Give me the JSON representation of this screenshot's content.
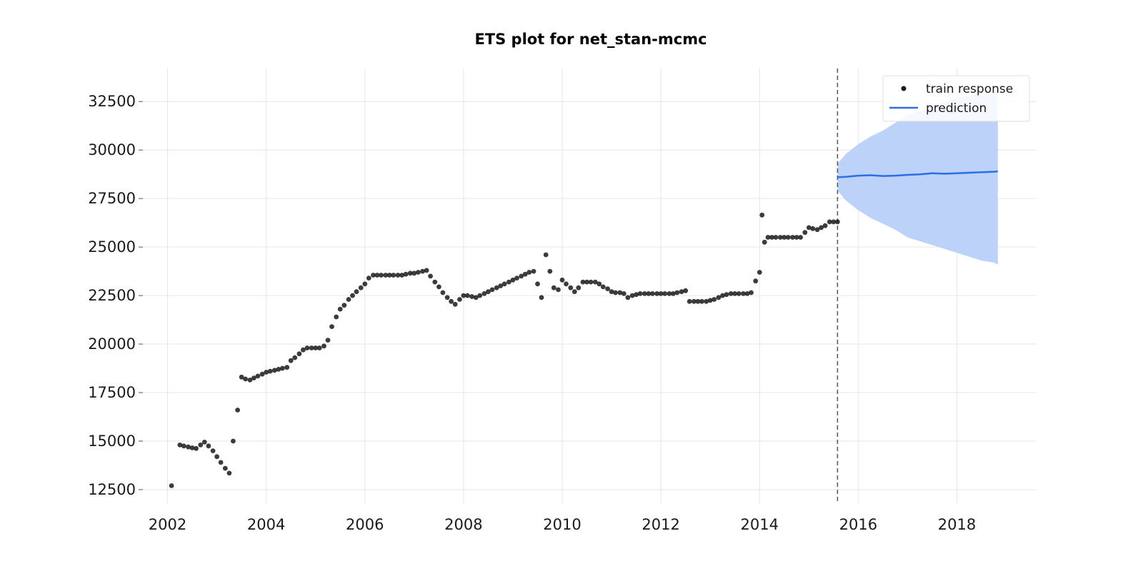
{
  "chart_data": {
    "type": "scatter",
    "title": "ETS plot for net_stan-mcmc",
    "xlabel": "",
    "ylabel": "",
    "xlim": [
      2001.5,
      2019.6
    ],
    "ylim": [
      11800,
      34200
    ],
    "x_ticks": [
      2002,
      2004,
      2006,
      2008,
      2010,
      2012,
      2014,
      2016,
      2018
    ],
    "y_ticks": [
      12500,
      15000,
      17500,
      20000,
      22500,
      25000,
      27500,
      30000,
      32500
    ],
    "grid": true,
    "legend_position": "top-right",
    "train_end_marker": 2015.58,
    "legend": [
      {
        "label": "train response",
        "kind": "marker",
        "color": "#1a1a1a"
      },
      {
        "label": "prediction",
        "kind": "line",
        "color": "#2b6fe6"
      }
    ],
    "colors": {
      "train": "#1a1a1a",
      "prediction": "#2b6fe6",
      "band": "#bcd2f8",
      "marker_line": "#555555"
    },
    "train_response": [
      [
        2002.08,
        12700
      ],
      [
        2002.25,
        14800
      ],
      [
        2002.33,
        14750
      ],
      [
        2002.42,
        14700
      ],
      [
        2002.5,
        14650
      ],
      [
        2002.58,
        14620
      ],
      [
        2002.67,
        14800
      ],
      [
        2002.75,
        14950
      ],
      [
        2002.83,
        14750
      ],
      [
        2002.92,
        14500
      ],
      [
        2003.0,
        14200
      ],
      [
        2003.08,
        13900
      ],
      [
        2003.17,
        13600
      ],
      [
        2003.25,
        13350
      ],
      [
        2003.33,
        15000
      ],
      [
        2003.42,
        16600
      ],
      [
        2003.5,
        18300
      ],
      [
        2003.58,
        18200
      ],
      [
        2003.67,
        18150
      ],
      [
        2003.75,
        18250
      ],
      [
        2003.83,
        18350
      ],
      [
        2003.92,
        18450
      ],
      [
        2004.0,
        18550
      ],
      [
        2004.08,
        18600
      ],
      [
        2004.17,
        18650
      ],
      [
        2004.25,
        18700
      ],
      [
        2004.33,
        18750
      ],
      [
        2004.42,
        18800
      ],
      [
        2004.5,
        19150
      ],
      [
        2004.58,
        19300
      ],
      [
        2004.67,
        19500
      ],
      [
        2004.75,
        19700
      ],
      [
        2004.83,
        19800
      ],
      [
        2004.92,
        19800
      ],
      [
        2005.0,
        19800
      ],
      [
        2005.08,
        19800
      ],
      [
        2005.17,
        19900
      ],
      [
        2005.25,
        20200
      ],
      [
        2005.33,
        20900
      ],
      [
        2005.42,
        21400
      ],
      [
        2005.5,
        21800
      ],
      [
        2005.58,
        22000
      ],
      [
        2005.67,
        22300
      ],
      [
        2005.75,
        22500
      ],
      [
        2005.83,
        22700
      ],
      [
        2005.92,
        22900
      ],
      [
        2006.0,
        23100
      ],
      [
        2006.08,
        23400
      ],
      [
        2006.17,
        23550
      ],
      [
        2006.25,
        23550
      ],
      [
        2006.33,
        23550
      ],
      [
        2006.42,
        23550
      ],
      [
        2006.5,
        23550
      ],
      [
        2006.58,
        23550
      ],
      [
        2006.67,
        23550
      ],
      [
        2006.75,
        23550
      ],
      [
        2006.83,
        23600
      ],
      [
        2006.92,
        23650
      ],
      [
        2007.0,
        23650
      ],
      [
        2007.08,
        23700
      ],
      [
        2007.17,
        23750
      ],
      [
        2007.25,
        23800
      ],
      [
        2007.33,
        23500
      ],
      [
        2007.42,
        23200
      ],
      [
        2007.5,
        22950
      ],
      [
        2007.58,
        22650
      ],
      [
        2007.67,
        22400
      ],
      [
        2007.75,
        22200
      ],
      [
        2007.83,
        22050
      ],
      [
        2007.92,
        22300
      ],
      [
        2008.0,
        22500
      ],
      [
        2008.08,
        22500
      ],
      [
        2008.17,
        22450
      ],
      [
        2008.25,
        22400
      ],
      [
        2008.33,
        22500
      ],
      [
        2008.42,
        22600
      ],
      [
        2008.5,
        22700
      ],
      [
        2008.58,
        22800
      ],
      [
        2008.67,
        22900
      ],
      [
        2008.75,
        23000
      ],
      [
        2008.83,
        23100
      ],
      [
        2008.92,
        23200
      ],
      [
        2009.0,
        23300
      ],
      [
        2009.08,
        23400
      ],
      [
        2009.17,
        23500
      ],
      [
        2009.25,
        23600
      ],
      [
        2009.33,
        23700
      ],
      [
        2009.42,
        23750
      ],
      [
        2009.5,
        23100
      ],
      [
        2009.58,
        22400
      ],
      [
        2009.67,
        24600
      ],
      [
        2009.75,
        23750
      ],
      [
        2009.83,
        22900
      ],
      [
        2009.92,
        22800
      ],
      [
        2010.0,
        23300
      ],
      [
        2010.08,
        23100
      ],
      [
        2010.17,
        22900
      ],
      [
        2010.25,
        22700
      ],
      [
        2010.33,
        22900
      ],
      [
        2010.42,
        23200
      ],
      [
        2010.5,
        23200
      ],
      [
        2010.58,
        23200
      ],
      [
        2010.67,
        23200
      ],
      [
        2010.75,
        23100
      ],
      [
        2010.83,
        22950
      ],
      [
        2010.92,
        22850
      ],
      [
        2011.0,
        22700
      ],
      [
        2011.08,
        22650
      ],
      [
        2011.17,
        22650
      ],
      [
        2011.25,
        22600
      ],
      [
        2011.33,
        22400
      ],
      [
        2011.42,
        22500
      ],
      [
        2011.5,
        22550
      ],
      [
        2011.58,
        22600
      ],
      [
        2011.67,
        22600
      ],
      [
        2011.75,
        22600
      ],
      [
        2011.83,
        22600
      ],
      [
        2011.92,
        22600
      ],
      [
        2012.0,
        22600
      ],
      [
        2012.08,
        22600
      ],
      [
        2012.17,
        22600
      ],
      [
        2012.25,
        22600
      ],
      [
        2012.33,
        22650
      ],
      [
        2012.42,
        22700
      ],
      [
        2012.5,
        22750
      ],
      [
        2012.58,
        22200
      ],
      [
        2012.67,
        22200
      ],
      [
        2012.75,
        22200
      ],
      [
        2012.83,
        22200
      ],
      [
        2012.92,
        22200
      ],
      [
        2013.0,
        22250
      ],
      [
        2013.08,
        22300
      ],
      [
        2013.17,
        22400
      ],
      [
        2013.25,
        22500
      ],
      [
        2013.33,
        22550
      ],
      [
        2013.42,
        22600
      ],
      [
        2013.5,
        22600
      ],
      [
        2013.58,
        22600
      ],
      [
        2013.67,
        22600
      ],
      [
        2013.75,
        22600
      ],
      [
        2013.83,
        22650
      ],
      [
        2013.92,
        23250
      ],
      [
        2014.0,
        23700
      ],
      [
        2014.05,
        26650
      ],
      [
        2014.1,
        25250
      ],
      [
        2014.17,
        25500
      ],
      [
        2014.25,
        25500
      ],
      [
        2014.33,
        25500
      ],
      [
        2014.42,
        25500
      ],
      [
        2014.5,
        25500
      ],
      [
        2014.58,
        25500
      ],
      [
        2014.67,
        25500
      ],
      [
        2014.75,
        25500
      ],
      [
        2014.83,
        25500
      ],
      [
        2014.92,
        25750
      ],
      [
        2015.0,
        26000
      ],
      [
        2015.08,
        25950
      ],
      [
        2015.17,
        25900
      ],
      [
        2015.25,
        26000
      ],
      [
        2015.33,
        26100
      ],
      [
        2015.42,
        26300
      ],
      [
        2015.5,
        26300
      ],
      [
        2015.58,
        26300
      ]
    ],
    "prediction": [
      [
        2015.58,
        28600
      ],
      [
        2015.75,
        28620
      ],
      [
        2016.0,
        28680
      ],
      [
        2016.25,
        28700
      ],
      [
        2016.5,
        28660
      ],
      [
        2016.75,
        28680
      ],
      [
        2017.0,
        28720
      ],
      [
        2017.25,
        28750
      ],
      [
        2017.5,
        28800
      ],
      [
        2017.75,
        28780
      ],
      [
        2018.0,
        28800
      ],
      [
        2018.25,
        28830
      ],
      [
        2018.5,
        28860
      ],
      [
        2018.75,
        28880
      ],
      [
        2018.83,
        28900
      ]
    ],
    "prediction_band": [
      {
        "x": 2015.58,
        "lower": 27900,
        "upper": 29300
      },
      {
        "x": 2015.75,
        "lower": 27400,
        "upper": 29800
      },
      {
        "x": 2016.0,
        "lower": 26900,
        "upper": 30300
      },
      {
        "x": 2016.25,
        "lower": 26500,
        "upper": 30700
      },
      {
        "x": 2016.5,
        "lower": 26200,
        "upper": 31000
      },
      {
        "x": 2016.75,
        "lower": 25900,
        "upper": 31400
      },
      {
        "x": 2017.0,
        "lower": 25500,
        "upper": 31800
      },
      {
        "x": 2017.25,
        "lower": 25300,
        "upper": 32000
      },
      {
        "x": 2017.5,
        "lower": 25100,
        "upper": 32200
      },
      {
        "x": 2017.75,
        "lower": 24900,
        "upper": 32500
      },
      {
        "x": 2018.0,
        "lower": 24700,
        "upper": 32700
      },
      {
        "x": 2018.25,
        "lower": 24500,
        "upper": 32800
      },
      {
        "x": 2018.5,
        "lower": 24300,
        "upper": 32900
      },
      {
        "x": 2018.75,
        "lower": 24200,
        "upper": 33000
      },
      {
        "x": 2018.83,
        "lower": 24100,
        "upper": 33000
      }
    ]
  }
}
